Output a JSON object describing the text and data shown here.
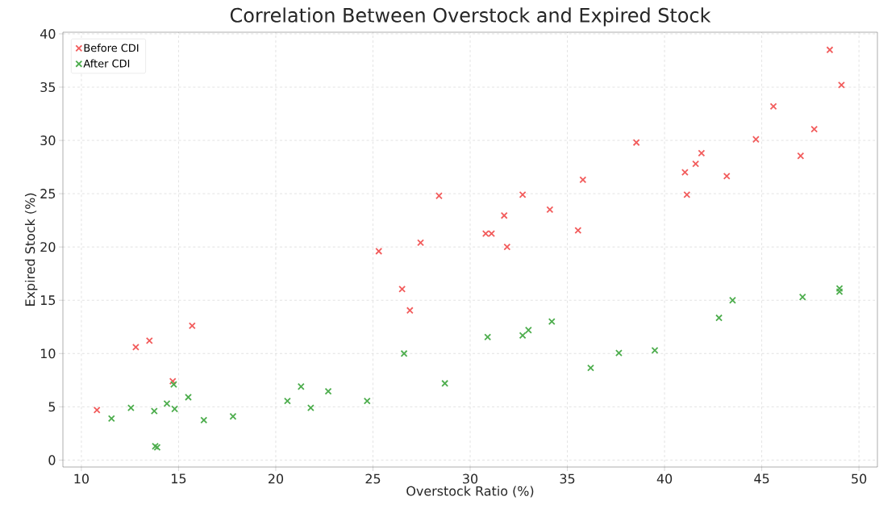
{
  "chart_data": {
    "type": "scatter",
    "title": "Correlation Between Overstock and Expired Stock",
    "xlabel": "Overstock Ratio (%)",
    "ylabel": "Expired Stock (%)",
    "series": [
      {
        "name": "Before CDI",
        "color": "#f25c5c",
        "x": [
          10.8,
          12.8,
          13.5,
          14.7,
          15.7,
          26.9,
          28.4,
          25.3,
          27.45,
          26.5,
          48.5,
          49.1,
          45.6,
          47.7,
          44.7,
          47.0,
          38.55,
          41.9,
          41.6,
          41.05,
          43.2,
          41.15,
          35.8,
          32.7,
          31.75,
          34.1,
          30.8,
          31.1,
          31.9,
          35.55
        ],
        "values": [
          4.7,
          10.6,
          11.2,
          7.4,
          12.6,
          14.05,
          24.8,
          19.6,
          20.4,
          16.05,
          38.5,
          35.2,
          33.2,
          31.05,
          30.1,
          28.55,
          29.8,
          28.8,
          27.8,
          27.0,
          26.65,
          24.9,
          26.3,
          24.9,
          22.95,
          23.5,
          21.25,
          21.25,
          20.0,
          21.55
        ]
      },
      {
        "name": "After CDI",
        "color": "#4dad4d",
        "x": [
          11.55,
          12.55,
          13.75,
          13.8,
          13.9,
          14.4,
          14.75,
          14.8,
          15.5,
          16.3,
          17.8,
          20.6,
          21.3,
          21.8,
          22.7,
          24.7,
          26.6,
          28.7,
          30.9,
          32.7,
          33.0,
          34.2,
          36.2,
          37.65,
          39.5,
          42.8,
          43.5,
          47.1,
          49.0,
          49.0
        ],
        "values": [
          3.9,
          4.9,
          4.6,
          1.3,
          1.2,
          5.3,
          7.1,
          4.8,
          5.9,
          3.75,
          4.1,
          5.55,
          6.9,
          4.9,
          6.45,
          5.55,
          10.0,
          7.2,
          11.55,
          11.7,
          12.2,
          13.0,
          8.65,
          10.05,
          10.3,
          13.35,
          15.0,
          15.3,
          16.1,
          15.8
        ]
      }
    ],
    "xlim": [
      9.05,
      50.95
    ],
    "ylim": [
      -0.65,
      40.15
    ],
    "xticks": [
      10,
      15,
      20,
      25,
      30,
      35,
      40,
      45,
      50
    ],
    "yticks": [
      0,
      5,
      10,
      15,
      20,
      25,
      30,
      35,
      40
    ],
    "grid": true,
    "legend": "top left",
    "marker": "cross"
  }
}
